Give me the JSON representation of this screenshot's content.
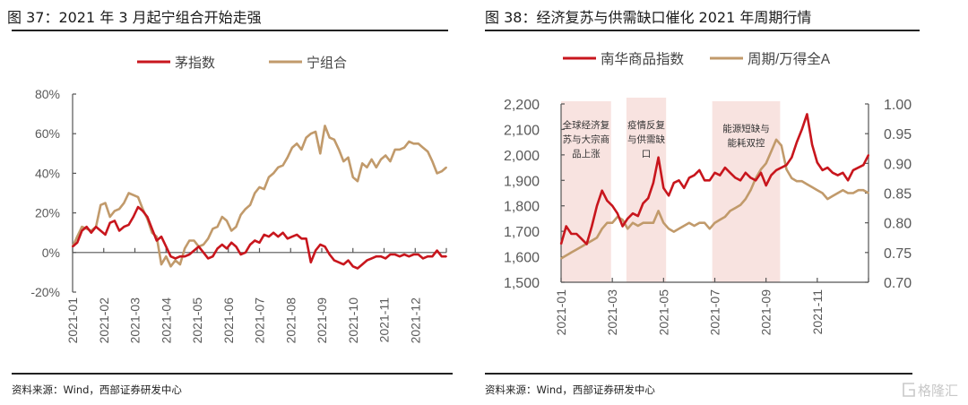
{
  "left_panel": {
    "title": "图 37：2021 年 3 月起宁组合开始走强",
    "source": "资料来源：Wind，西部证券研发中心"
  },
  "right_panel": {
    "title": "图 38：经济复苏与供需缺口催化 2021 年周期行情",
    "source": "资料来源：Wind，西部证券研发中心"
  },
  "watermark": {
    "text": "格隆汇"
  },
  "chart_data": [
    {
      "type": "line",
      "title": "2021 年 3 月起宁组合开始走强",
      "xlabel": "",
      "ylabel": "",
      "x_unit": "months since 2021-01",
      "xlim": [
        0,
        12
      ],
      "ylim": [
        -20,
        80
      ],
      "y_ticks": [
        80,
        60,
        40,
        20,
        0,
        -20
      ],
      "y_tick_labels": [
        "80%",
        "60%",
        "40%",
        "20%",
        "0%",
        "-20%"
      ],
      "x_tick_labels": [
        "2021-01",
        "2021-02",
        "2021-03",
        "2021-04",
        "2021-05",
        "2021-06",
        "2021-07",
        "2021-08",
        "2021-09",
        "2021-10",
        "2021-11",
        "2021-12"
      ],
      "legend_position": "top-center",
      "colors": {
        "茅指数": "#c8161d",
        "宁组合": "#c19a6b"
      },
      "series": [
        {
          "name": "茅指数",
          "x": [
            0,
            0.15,
            0.3,
            0.45,
            0.6,
            0.75,
            0.9,
            1.05,
            1.2,
            1.35,
            1.5,
            1.65,
            1.8,
            1.95,
            2.1,
            2.25,
            2.4,
            2.55,
            2.7,
            2.85,
            3.0,
            3.15,
            3.3,
            3.45,
            3.6,
            3.75,
            3.9,
            4.05,
            4.2,
            4.35,
            4.5,
            4.65,
            4.8,
            4.95,
            5.1,
            5.25,
            5.4,
            5.55,
            5.7,
            5.85,
            6.0,
            6.15,
            6.3,
            6.45,
            6.6,
            6.75,
            6.9,
            7.05,
            7.2,
            7.35,
            7.5,
            7.65,
            7.8,
            7.95,
            8.1,
            8.25,
            8.4,
            8.55,
            8.7,
            8.85,
            9.0,
            9.15,
            9.3,
            9.45,
            9.6,
            9.75,
            9.9,
            10.05,
            10.2,
            10.35,
            10.5,
            10.65,
            10.8,
            10.95,
            11.1,
            11.25,
            11.4,
            11.55,
            11.7,
            11.85,
            12.0
          ],
          "y": [
            3,
            5,
            11,
            13,
            10,
            13,
            11,
            9,
            15,
            16,
            11,
            13,
            14,
            18,
            23,
            21,
            18,
            12,
            6,
            8,
            3,
            -2,
            -3,
            -2,
            -2,
            -1,
            1,
            3,
            0,
            -3,
            -2,
            2,
            4,
            2,
            5,
            3,
            -1,
            0,
            4,
            6,
            5,
            9,
            8,
            10,
            8,
            10,
            7,
            8,
            9,
            7,
            7,
            -5,
            1,
            4,
            3,
            -1,
            -4,
            -5,
            -6,
            -4,
            -7,
            -8,
            -6,
            -4,
            -3,
            -2,
            -2,
            -3,
            -1,
            -1,
            -2,
            -1,
            -2,
            -1,
            -1,
            -3,
            -2,
            -2,
            1,
            -2,
            -2
          ]
        },
        {
          "name": "宁组合",
          "x": [
            0,
            0.15,
            0.3,
            0.45,
            0.6,
            0.75,
            0.9,
            1.05,
            1.2,
            1.35,
            1.5,
            1.65,
            1.8,
            1.95,
            2.1,
            2.25,
            2.4,
            2.55,
            2.7,
            2.85,
            3.0,
            3.15,
            3.3,
            3.45,
            3.6,
            3.75,
            3.9,
            4.05,
            4.2,
            4.35,
            4.5,
            4.65,
            4.8,
            4.95,
            5.1,
            5.25,
            5.4,
            5.55,
            5.7,
            5.85,
            6.0,
            6.15,
            6.3,
            6.45,
            6.6,
            6.75,
            6.9,
            7.05,
            7.2,
            7.35,
            7.5,
            7.65,
            7.8,
            7.95,
            8.1,
            8.25,
            8.4,
            8.55,
            8.7,
            8.85,
            9.0,
            9.15,
            9.3,
            9.45,
            9.6,
            9.75,
            9.9,
            10.05,
            10.2,
            10.35,
            10.5,
            10.65,
            10.8,
            10.95,
            11.1,
            11.25,
            11.4,
            11.55,
            11.7,
            11.85,
            12.0
          ],
          "y": [
            3,
            8,
            13,
            12,
            11,
            13,
            24,
            25,
            18,
            21,
            22,
            25,
            30,
            29,
            28,
            22,
            17,
            10,
            8,
            -6,
            -2,
            -7,
            -4,
            -6,
            2,
            6,
            6,
            3,
            4,
            7,
            12,
            13,
            18,
            16,
            11,
            13,
            19,
            22,
            24,
            30,
            33,
            32,
            38,
            40,
            43,
            44,
            48,
            53,
            55,
            52,
            58,
            60,
            61,
            50,
            64,
            58,
            57,
            52,
            46,
            48,
            38,
            36,
            45,
            43,
            47,
            43,
            47,
            49,
            46,
            52,
            52,
            53,
            56,
            55,
            55,
            53,
            51,
            46,
            40,
            41,
            43
          ]
        }
      ]
    },
    {
      "type": "line",
      "title": "经济复苏与供需缺口催化 2021 年周期行情",
      "xlabel": "",
      "ylabel": "",
      "x_unit": "months since 2021-01",
      "xlim": [
        0,
        12
      ],
      "ylim": [
        1500,
        2200
      ],
      "y2lim": [
        0.7,
        1.0
      ],
      "y_ticks": [
        2200,
        2100,
        2000,
        1900,
        1800,
        1700,
        1600,
        1500
      ],
      "y_tick_labels": [
        "2,200",
        "2,100",
        "2,000",
        "1,900",
        "1,800",
        "1,700",
        "1,600",
        "1,500"
      ],
      "y2_ticks": [
        1.0,
        0.95,
        0.9,
        0.85,
        0.8,
        0.75,
        0.7
      ],
      "y2_tick_labels": [
        "1.00",
        "0.95",
        "0.90",
        "0.85",
        "0.80",
        "0.75",
        "0.70"
      ],
      "x_tick_labels": [
        "2021-01",
        "2021-03",
        "2021-05",
        "2021-07",
        "2021-09",
        "2021-11"
      ],
      "legend_position": "top-center",
      "colors": {
        "南华商品指数": "#c8161d",
        "周期/万得全A": "#c19a6b",
        "shade": "#f8e3e0"
      },
      "shaded_periods": [
        {
          "x": [
            0,
            1.95
          ],
          "label": [
            "全球经济复",
            "苏与大宗商",
            "品上涨"
          ]
        },
        {
          "x": [
            2.55,
            4.1
          ],
          "label": [
            "疫情反复",
            "与供需缺",
            "口"
          ]
        },
        {
          "x": [
            5.9,
            8.55
          ],
          "label": [
            "能源短缺与",
            "能耗双控"
          ]
        }
      ],
      "series": [
        {
          "name": "南华商品指数",
          "axis": "left",
          "x": [
            0,
            0.2,
            0.4,
            0.6,
            0.8,
            1.0,
            1.2,
            1.4,
            1.6,
            1.8,
            2.0,
            2.2,
            2.4,
            2.6,
            2.8,
            3.0,
            3.2,
            3.4,
            3.6,
            3.8,
            4.0,
            4.2,
            4.4,
            4.6,
            4.8,
            5.0,
            5.2,
            5.4,
            5.6,
            5.8,
            6.0,
            6.2,
            6.4,
            6.6,
            6.8,
            7.0,
            7.2,
            7.4,
            7.6,
            7.8,
            8.0,
            8.2,
            8.4,
            8.6,
            8.8,
            9.0,
            9.2,
            9.4,
            9.6,
            9.8,
            10.0,
            10.2,
            10.4,
            10.6,
            10.8,
            11.0,
            11.2,
            11.4,
            11.6,
            11.8,
            12.0
          ],
          "y": [
            1650,
            1720,
            1690,
            1690,
            1670,
            1650,
            1720,
            1800,
            1860,
            1820,
            1800,
            1770,
            1720,
            1750,
            1770,
            1760,
            1810,
            1830,
            1890,
            1990,
            1870,
            1840,
            1890,
            1900,
            1870,
            1910,
            1920,
            1940,
            1900,
            1900,
            1930,
            1920,
            1950,
            1930,
            1910,
            1900,
            1930,
            1910,
            1900,
            1930,
            1880,
            1920,
            1940,
            1950,
            1960,
            1990,
            2050,
            2100,
            2160,
            2040,
            1970,
            1940,
            1950,
            1930,
            1920,
            1930,
            1900,
            1940,
            1950,
            1960,
            2000
          ]
        },
        {
          "name": "周期/万得全A",
          "axis": "right",
          "x": [
            0,
            0.2,
            0.4,
            0.6,
            0.8,
            1.0,
            1.2,
            1.4,
            1.6,
            1.8,
            2.0,
            2.2,
            2.4,
            2.6,
            2.8,
            3.0,
            3.2,
            3.4,
            3.6,
            3.8,
            4.0,
            4.2,
            4.4,
            4.6,
            4.8,
            5.0,
            5.2,
            5.4,
            5.6,
            5.8,
            6.0,
            6.2,
            6.4,
            6.6,
            6.8,
            7.0,
            7.2,
            7.4,
            7.6,
            7.8,
            8.0,
            8.2,
            8.4,
            8.6,
            8.8,
            9.0,
            9.2,
            9.4,
            9.6,
            9.8,
            10.0,
            10.2,
            10.4,
            10.6,
            10.8,
            11.0,
            11.2,
            11.4,
            11.6,
            11.8,
            12.0
          ],
          "y": [
            0.74,
            0.745,
            0.75,
            0.755,
            0.76,
            0.765,
            0.77,
            0.775,
            0.79,
            0.8,
            0.8,
            0.81,
            0.805,
            0.79,
            0.8,
            0.795,
            0.8,
            0.8,
            0.8,
            0.82,
            0.8,
            0.79,
            0.785,
            0.79,
            0.795,
            0.8,
            0.795,
            0.8,
            0.8,
            0.79,
            0.8,
            0.805,
            0.81,
            0.82,
            0.825,
            0.83,
            0.84,
            0.855,
            0.875,
            0.89,
            0.9,
            0.92,
            0.94,
            0.93,
            0.89,
            0.875,
            0.87,
            0.87,
            0.865,
            0.86,
            0.855,
            0.85,
            0.84,
            0.845,
            0.85,
            0.855,
            0.85,
            0.85,
            0.855,
            0.855,
            0.85
          ]
        }
      ]
    }
  ]
}
